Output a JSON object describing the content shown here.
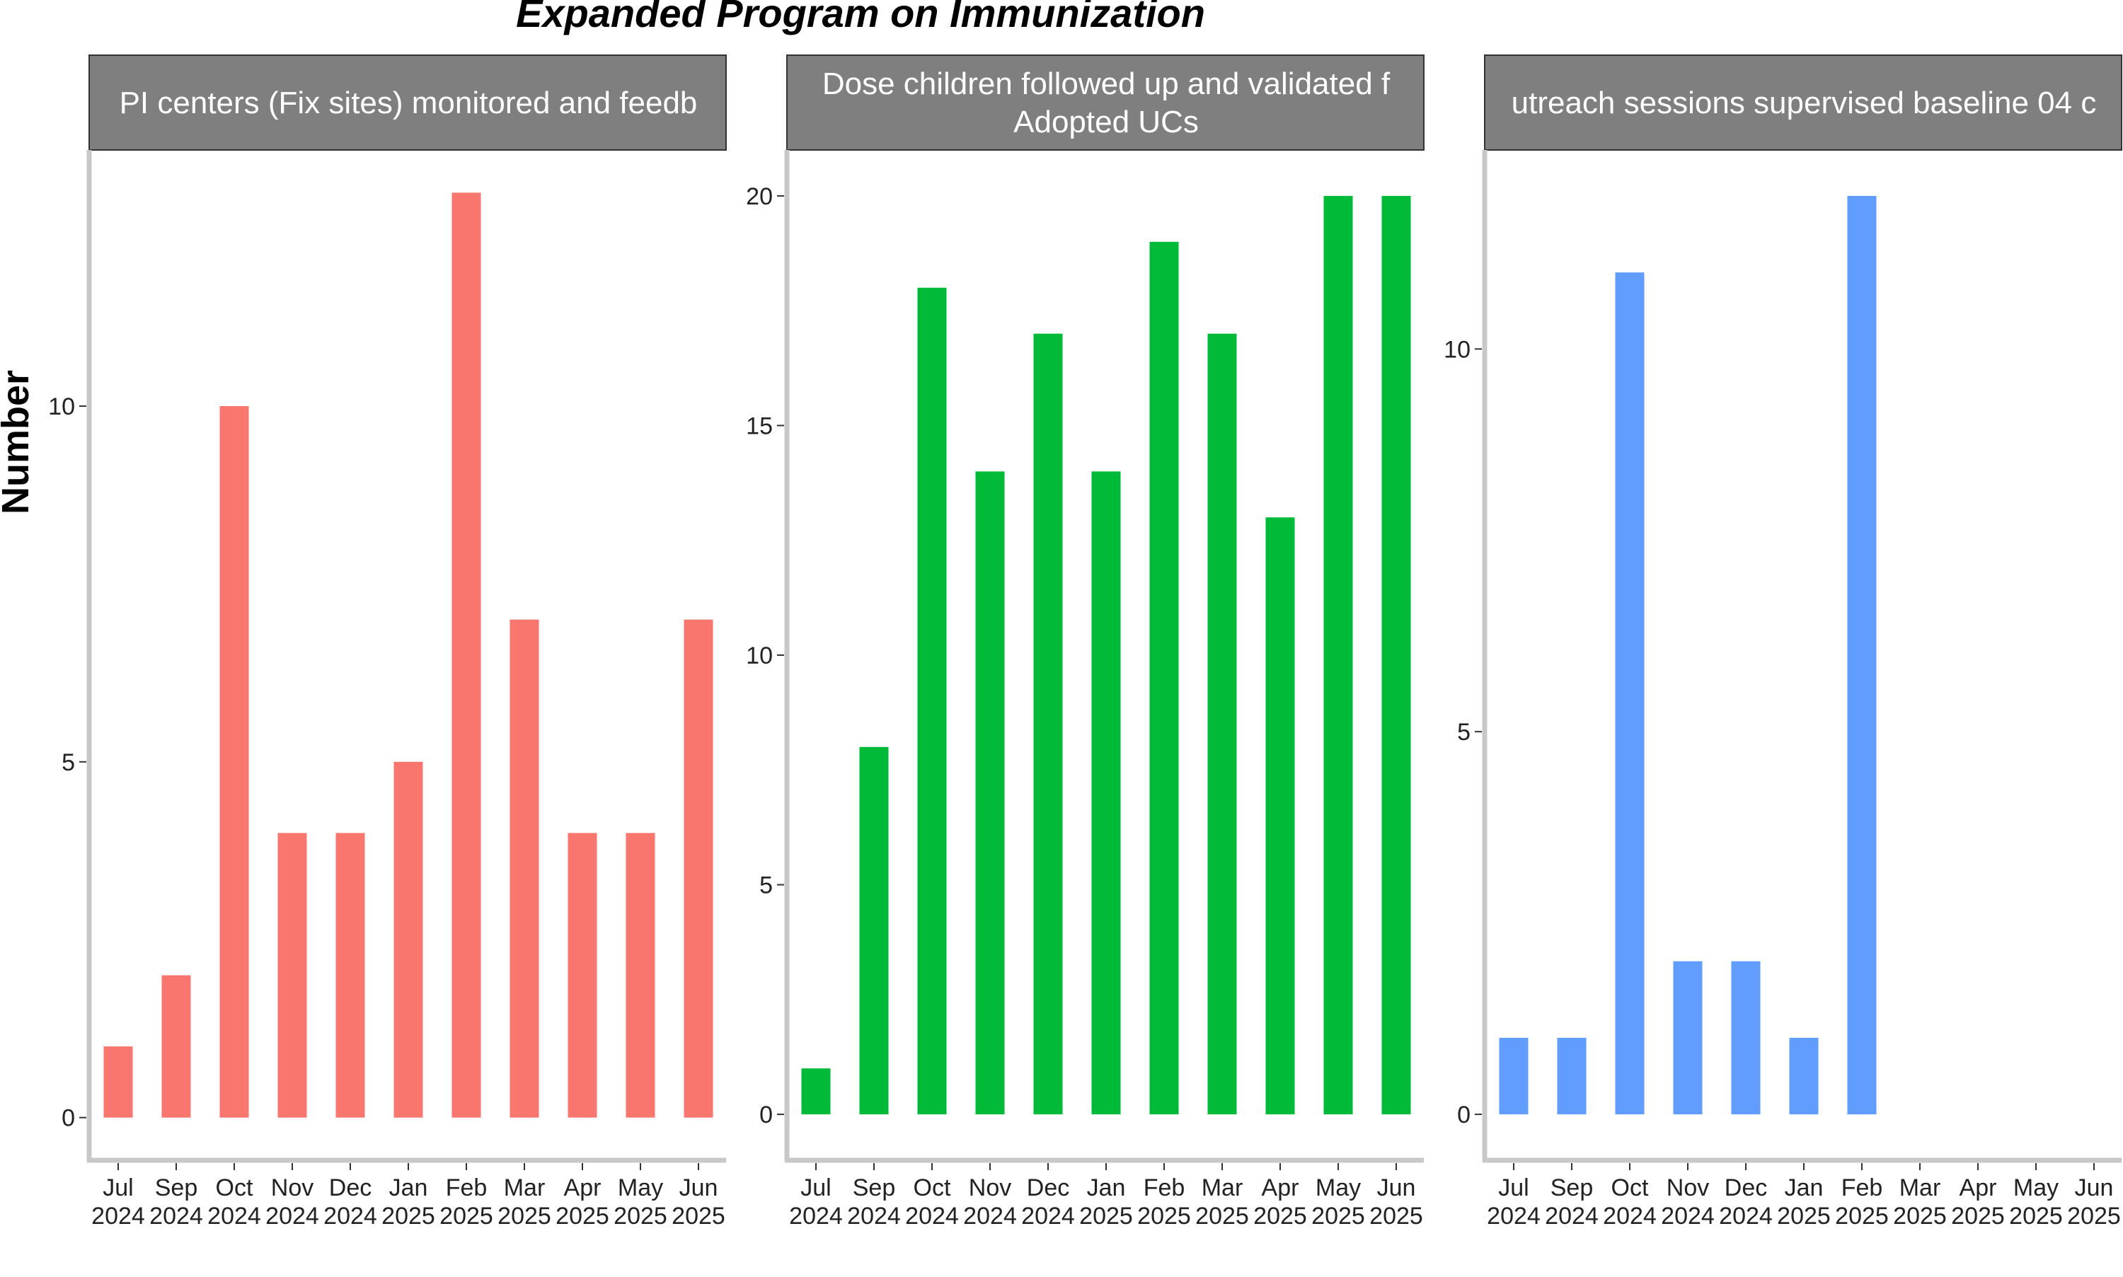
{
  "title": "Expanded Program on Immunization",
  "ylabel": "Number",
  "chart_data": [
    {
      "type": "bar",
      "title": "PI centers (Fix sites) monitored and feedb",
      "title_lines": [
        "PI centers (Fix sites) monitored and feedb"
      ],
      "color": "#F8766D",
      "categories": [
        "Jul\n2024",
        "Sep\n2024",
        "Oct\n2024",
        "Nov\n2024",
        "Dec\n2024",
        "Jan\n2025",
        "Feb\n2025",
        "Mar\n2025",
        "Apr\n2025",
        "May\n2025",
        "Jun\n2025"
      ],
      "values": [
        1,
        2,
        10,
        4,
        4,
        5,
        13,
        7,
        4,
        4,
        7
      ],
      "ylim": [
        -0.6,
        13.6
      ],
      "yticks": [
        0,
        5,
        10
      ],
      "xlabel": "",
      "ylabel": "Number"
    },
    {
      "type": "bar",
      "title": "Dose children followed up and validated f Adopted UCs",
      "title_lines": [
        "Dose children followed up and validated f",
        "Adopted UCs"
      ],
      "color": "#00BA38",
      "categories": [
        "Jul\n2024",
        "Sep\n2024",
        "Oct\n2024",
        "Nov\n2024",
        "Dec\n2024",
        "Jan\n2025",
        "Feb\n2025",
        "Mar\n2025",
        "Apr\n2025",
        "May\n2025",
        "Jun\n2025"
      ],
      "values": [
        1,
        8,
        18,
        14,
        17,
        14,
        19,
        17,
        13,
        20,
        20
      ],
      "ylim": [
        -1,
        21
      ],
      "yticks": [
        0,
        5,
        10,
        15,
        20
      ],
      "xlabel": "",
      "ylabel": ""
    },
    {
      "type": "bar",
      "title": "utreach sessions supervised baseline 04 c",
      "title_lines": [
        "utreach sessions supervised baseline 04 c"
      ],
      "color": "#619CFF",
      "categories": [
        "Jul\n2024",
        "Sep\n2024",
        "Oct\n2024",
        "Nov\n2024",
        "Dec\n2024",
        "Jan\n2025",
        "Feb\n2025",
        "Mar\n2025",
        "Apr\n2025",
        "May\n2025",
        "Jun\n2025"
      ],
      "values": [
        1,
        1,
        11,
        2,
        2,
        1,
        12,
        null,
        null,
        null,
        null
      ],
      "ylim": [
        -0.6,
        12.6
      ],
      "yticks": [
        0,
        5,
        10
      ],
      "xlabel": "",
      "ylabel": ""
    }
  ]
}
